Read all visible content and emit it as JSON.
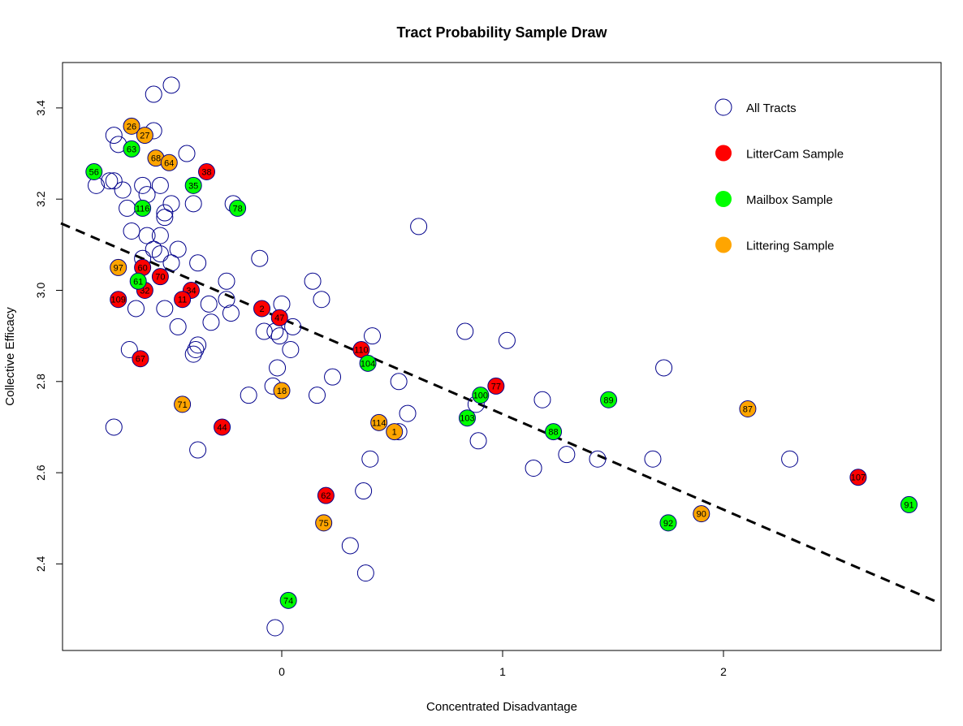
{
  "chart_data": {
    "type": "scatter",
    "title": "Tract Probability Sample Draw",
    "xlabel": "Concentrated Disadvantage",
    "ylabel": "Collective Efficacy",
    "xlim": [
      -1.0,
      2.97
    ],
    "ylim": [
      2.22,
      3.49
    ],
    "x_ticks": [
      "0",
      "1",
      "2"
    ],
    "y_ticks": [
      "2.4",
      "2.6",
      "2.8",
      "3.0",
      "3.2",
      "3.4"
    ],
    "grid": false,
    "legend_position": "top-right",
    "legend": [
      {
        "label": "All Tracts",
        "style": "open",
        "color": "#00008b"
      },
      {
        "label": "LitterCam Sample",
        "style": "filled",
        "color": "#ff0000"
      },
      {
        "label": "Mailbox Sample",
        "style": "filled",
        "color": "#00ff00"
      },
      {
        "label": "Littering Sample",
        "style": "filled",
        "color": "#ffa500"
      }
    ],
    "trend_line": {
      "style": "dashed",
      "color": "#000000",
      "x": [
        -1.0,
        2.97
      ],
      "y": [
        3.147,
        2.316
      ]
    },
    "series": [
      {
        "name": "All Tracts",
        "points": [
          [
            -0.58,
            3.43
          ],
          [
            -0.5,
            3.45
          ],
          [
            -0.76,
            3.34
          ],
          [
            -0.58,
            3.35
          ],
          [
            -0.43,
            3.3
          ],
          [
            -0.74,
            3.32
          ],
          [
            -0.78,
            3.24
          ],
          [
            -0.84,
            3.23
          ],
          [
            -0.76,
            3.24
          ],
          [
            -0.72,
            3.22
          ],
          [
            -0.63,
            3.23
          ],
          [
            -0.55,
            3.23
          ],
          [
            -0.61,
            3.21
          ],
          [
            -0.53,
            3.17
          ],
          [
            -0.5,
            3.19
          ],
          [
            -0.4,
            3.19
          ],
          [
            -0.22,
            3.19
          ],
          [
            -0.7,
            3.18
          ],
          [
            -0.53,
            3.16
          ],
          [
            -0.68,
            3.13
          ],
          [
            -0.61,
            3.12
          ],
          [
            -0.55,
            3.12
          ],
          [
            -0.58,
            3.09
          ],
          [
            -0.55,
            3.08
          ],
          [
            -0.47,
            3.09
          ],
          [
            -0.63,
            3.07
          ],
          [
            -0.5,
            3.06
          ],
          [
            -0.38,
            3.06
          ],
          [
            -0.1,
            3.07
          ],
          [
            -0.25,
            3.02
          ],
          [
            -0.33,
            2.97
          ],
          [
            -0.25,
            2.98
          ],
          [
            -0.23,
            2.95
          ],
          [
            -0.66,
            2.96
          ],
          [
            -0.53,
            2.96
          ],
          [
            0.14,
            3.02
          ],
          [
            0.18,
            2.98
          ],
          [
            0.0,
            2.97
          ],
          [
            -0.08,
            2.91
          ],
          [
            -0.03,
            2.91
          ],
          [
            -0.01,
            2.9
          ],
          [
            0.05,
            2.92
          ],
          [
            -0.47,
            2.92
          ],
          [
            -0.32,
            2.93
          ],
          [
            0.62,
            3.14
          ],
          [
            -0.69,
            2.87
          ],
          [
            -0.4,
            2.86
          ],
          [
            -0.39,
            2.87
          ],
          [
            -0.38,
            2.88
          ],
          [
            0.04,
            2.87
          ],
          [
            0.83,
            2.91
          ],
          [
            1.02,
            2.89
          ],
          [
            0.41,
            2.9
          ],
          [
            -0.02,
            2.83
          ],
          [
            0.23,
            2.81
          ],
          [
            -0.04,
            2.79
          ],
          [
            -0.15,
            2.77
          ],
          [
            0.16,
            2.77
          ],
          [
            0.53,
            2.8
          ],
          [
            0.57,
            2.73
          ],
          [
            1.18,
            2.76
          ],
          [
            1.73,
            2.83
          ],
          [
            0.88,
            2.75
          ],
          [
            0.89,
            2.67
          ],
          [
            0.53,
            2.69
          ],
          [
            -0.76,
            2.7
          ],
          [
            -0.38,
            2.65
          ],
          [
            0.4,
            2.63
          ],
          [
            1.14,
            2.61
          ],
          [
            1.29,
            2.64
          ],
          [
            1.43,
            2.63
          ],
          [
            1.68,
            2.63
          ],
          [
            2.3,
            2.63
          ],
          [
            0.37,
            2.56
          ],
          [
            0.31,
            2.44
          ],
          [
            0.38,
            2.38
          ],
          [
            -0.03,
            2.26
          ]
        ]
      },
      {
        "name": "LitterCam Sample",
        "points": [
          [
            -0.34,
            3.26,
            "38"
          ],
          [
            -0.63,
            3.05,
            "60"
          ],
          [
            -0.55,
            3.03,
            "70"
          ],
          [
            -0.62,
            3.0,
            "32"
          ],
          [
            -0.74,
            2.98,
            "109"
          ],
          [
            -0.41,
            3.0,
            "34"
          ],
          [
            -0.45,
            2.98,
            "11"
          ],
          [
            -0.09,
            2.96,
            "2"
          ],
          [
            -0.01,
            2.94,
            "47"
          ],
          [
            0.36,
            2.87,
            "110"
          ],
          [
            -0.64,
            2.85,
            "67"
          ],
          [
            -0.27,
            2.7,
            "44"
          ],
          [
            0.97,
            2.79,
            "77"
          ],
          [
            0.2,
            2.55,
            "62"
          ],
          [
            2.61,
            2.59,
            "107"
          ]
        ]
      },
      {
        "name": "Mailbox Sample",
        "points": [
          [
            -0.85,
            3.26,
            "56"
          ],
          [
            -0.68,
            3.31,
            "63"
          ],
          [
            -0.4,
            3.23,
            "35"
          ],
          [
            -0.63,
            3.18,
            "116"
          ],
          [
            -0.2,
            3.18,
            "78"
          ],
          [
            -0.65,
            3.02,
            "61"
          ],
          [
            0.39,
            2.84,
            "104"
          ],
          [
            0.9,
            2.77,
            "100"
          ],
          [
            0.84,
            2.72,
            "103"
          ],
          [
            1.23,
            2.69,
            "88"
          ],
          [
            1.48,
            2.76,
            "89"
          ],
          [
            1.75,
            2.49,
            "92"
          ],
          [
            2.84,
            2.53,
            "91"
          ],
          [
            0.03,
            2.32,
            "74"
          ]
        ]
      },
      {
        "name": "Littering Sample",
        "points": [
          [
            -0.68,
            3.36,
            "26"
          ],
          [
            -0.62,
            3.34,
            "27"
          ],
          [
            -0.57,
            3.29,
            "68"
          ],
          [
            -0.51,
            3.28,
            "64"
          ],
          [
            -0.74,
            3.05,
            "97"
          ],
          [
            -0.45,
            2.75,
            "71"
          ],
          [
            0.0,
            2.78,
            "18"
          ],
          [
            0.44,
            2.71,
            "114"
          ],
          [
            0.51,
            2.69,
            "1"
          ],
          [
            0.19,
            2.49,
            "75"
          ],
          [
            1.9,
            2.51,
            "90"
          ],
          [
            2.11,
            2.74,
            "87"
          ]
        ]
      }
    ]
  }
}
